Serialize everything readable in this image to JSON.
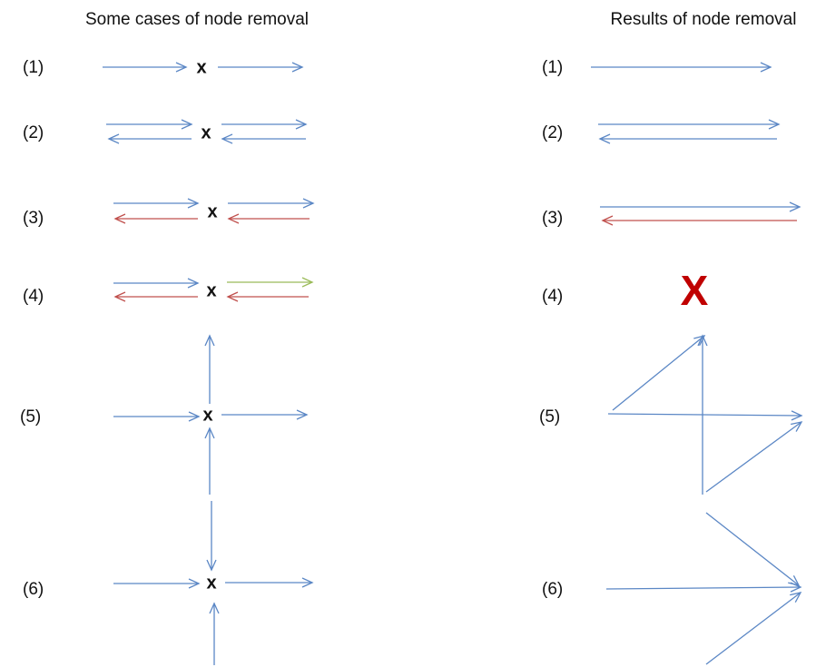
{
  "left": {
    "title": "Some cases of node removal",
    "cases": [
      {
        "label": "(1)",
        "node": "x"
      },
      {
        "label": "(2)",
        "node": "x"
      },
      {
        "label": "(3)",
        "node": "x"
      },
      {
        "label": "(4)",
        "node": "x"
      },
      {
        "label": "(5)",
        "node": "x"
      },
      {
        "label": "(6)",
        "node": "x"
      }
    ]
  },
  "right": {
    "title": "Results of node removal",
    "cases": [
      {
        "label": "(1)"
      },
      {
        "label": "(2)"
      },
      {
        "label": "(3)"
      },
      {
        "label": "(4)",
        "mark": "X"
      },
      {
        "label": "(5)"
      },
      {
        "label": "(6)"
      }
    ]
  }
}
